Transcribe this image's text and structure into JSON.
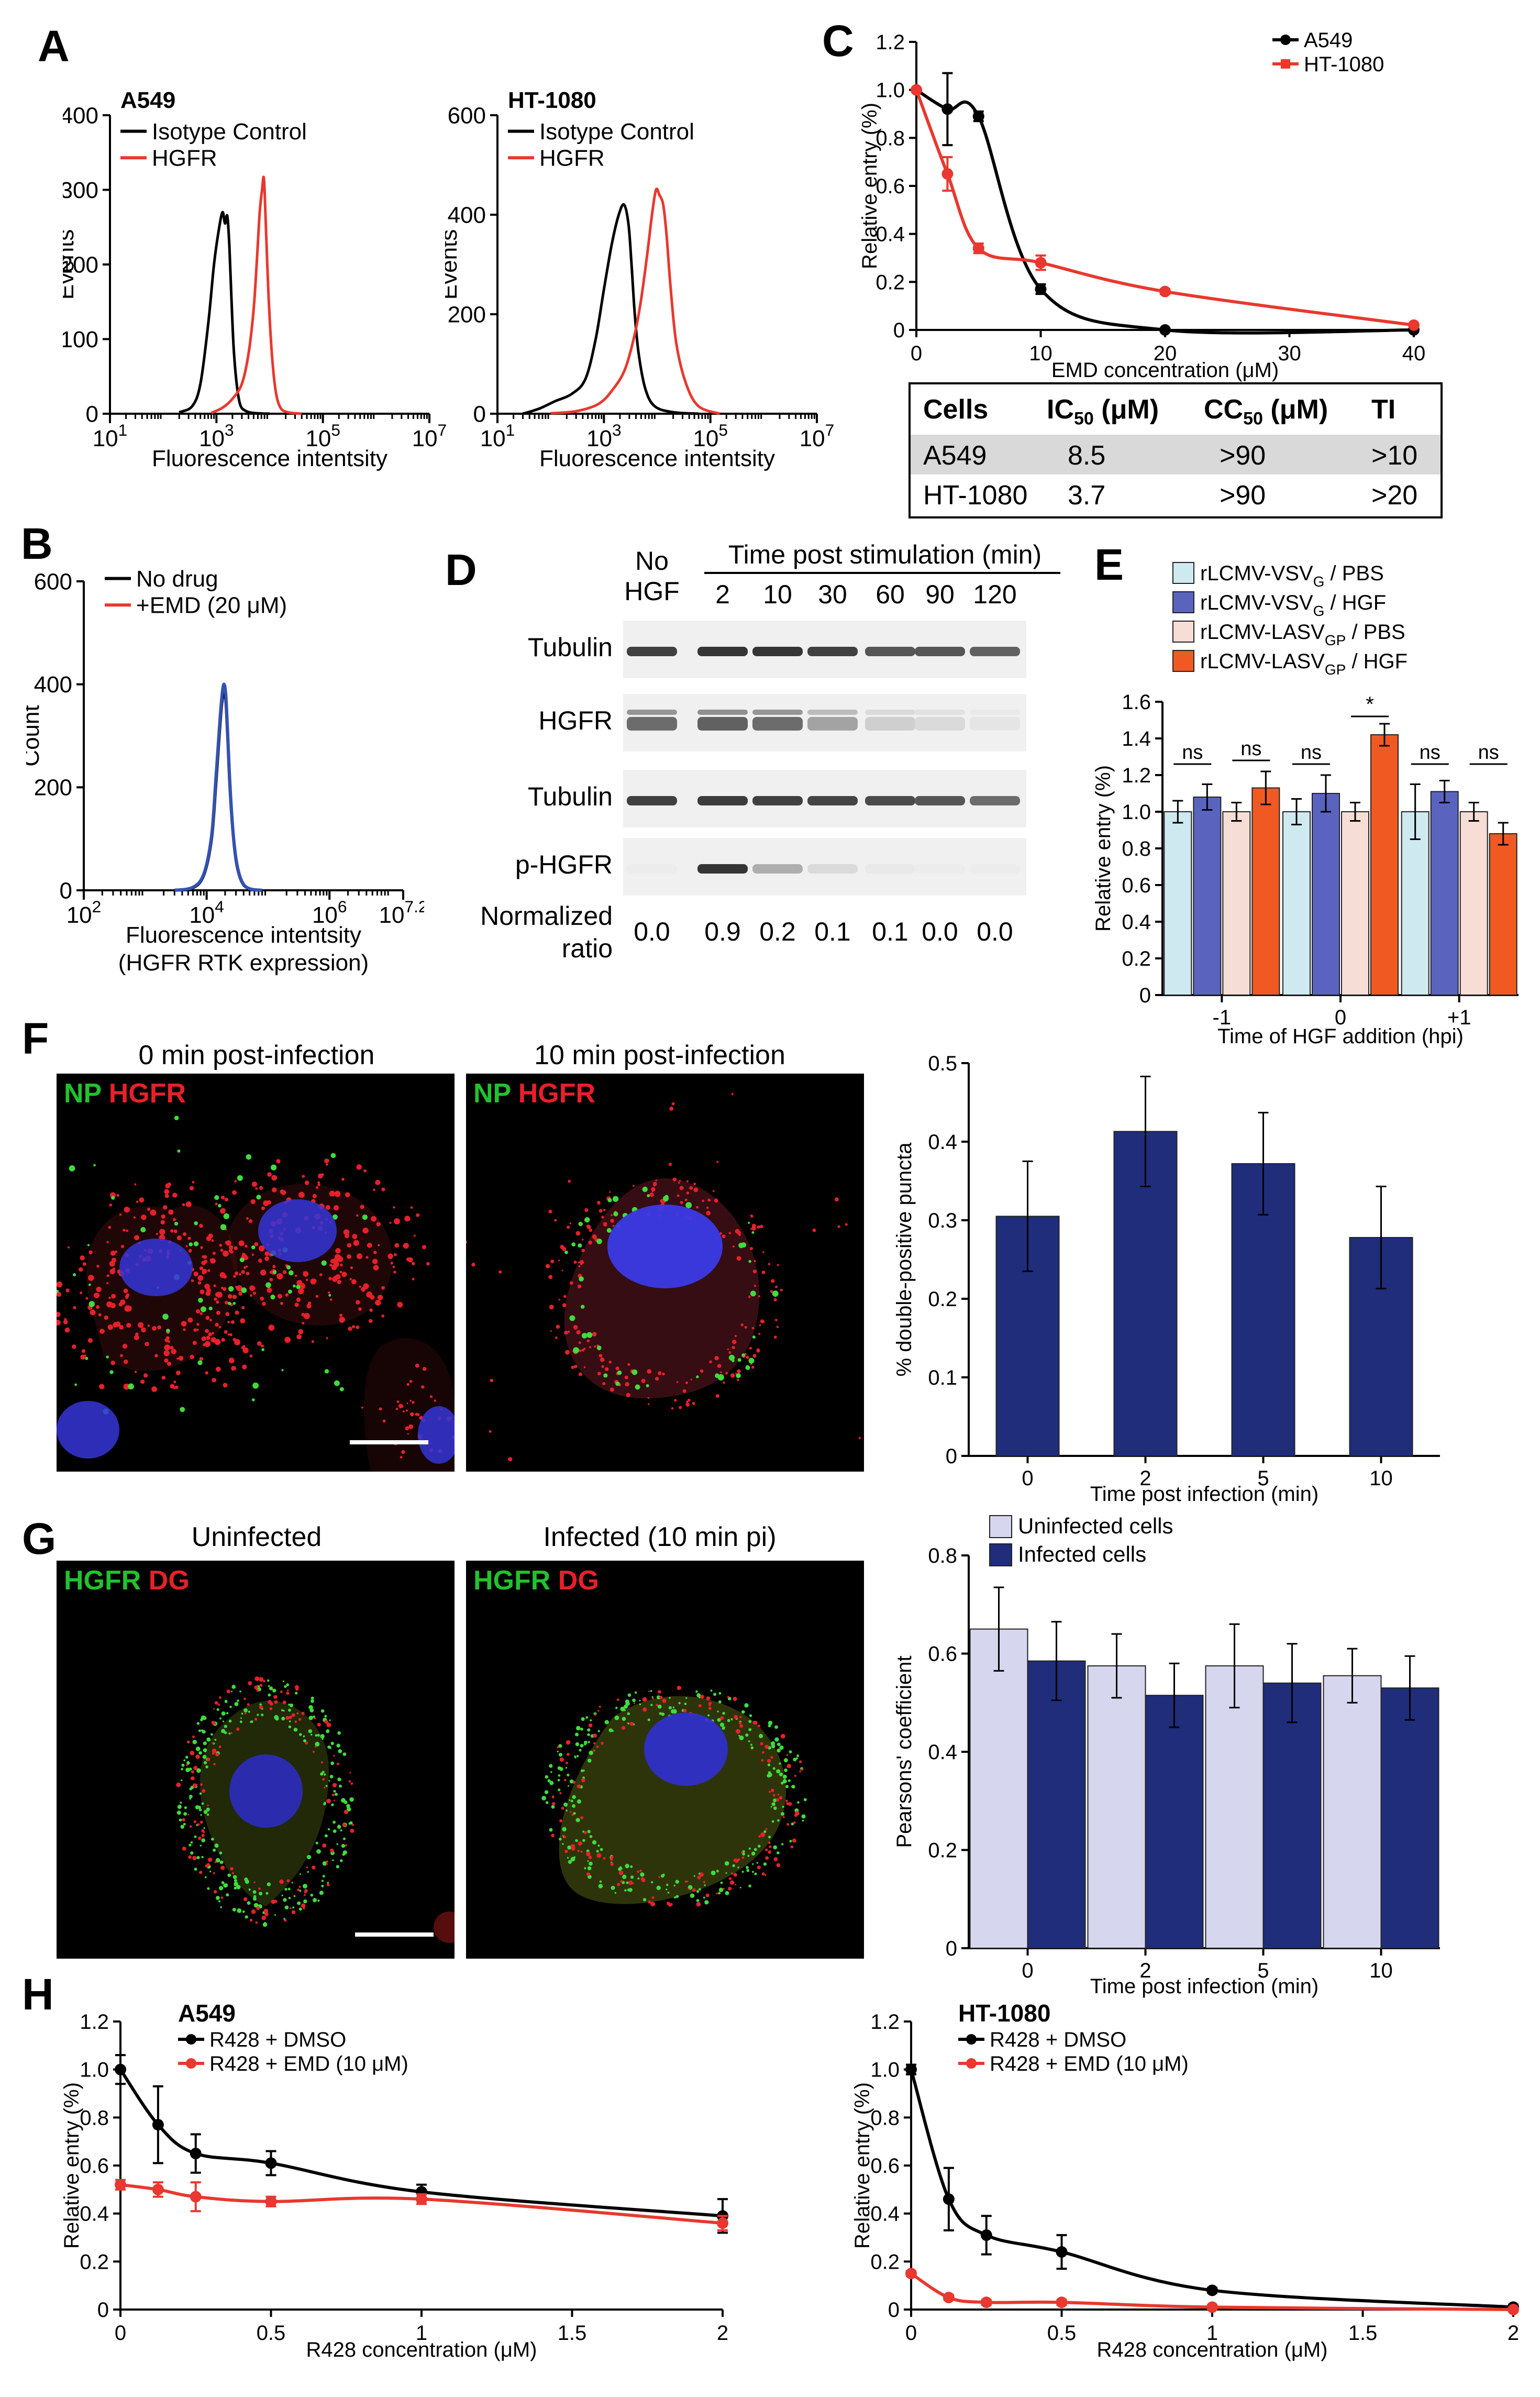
{
  "panel_letters": {
    "A": "A",
    "B": "B",
    "C": "C",
    "D": "D",
    "E": "E",
    "F": "F",
    "G": "G",
    "H": "H"
  },
  "chart_data": [
    {
      "id": "A1",
      "type": "line",
      "title": "A549",
      "xlabel": "Fluorescence intentsity",
      "ylabel": "Events",
      "xscale": "log",
      "xlim": [
        10,
        10000000
      ],
      "ylim": [
        0,
        400
      ],
      "yticks": [
        0,
        100,
        200,
        300,
        400
      ],
      "xticks": [
        {
          "base": "10",
          "exp": "1",
          "v": 10
        },
        {
          "base": "10",
          "exp": "3",
          "v": 1000
        },
        {
          "base": "10",
          "exp": "5",
          "v": 100000
        },
        {
          "base": "10",
          "exp": "7",
          "v": 10000000
        }
      ],
      "legend_position": "top-left",
      "series": [
        {
          "name": "Isotype Control",
          "color": "#000000",
          "x": [
            200,
            350,
            500,
            700,
            900,
            1100,
            1300,
            1450,
            1600,
            1750,
            1900,
            2100,
            2400,
            2800,
            3500,
            5000,
            10000
          ],
          "y": [
            2,
            10,
            40,
            120,
            200,
            245,
            270,
            255,
            265,
            225,
            160,
            90,
            40,
            12,
            4,
            1,
            0
          ]
        },
        {
          "name": "HGFR",
          "color": "#e8382f",
          "x": [
            800,
            1300,
            2000,
            3000,
            4000,
            5000,
            5800,
            6500,
            7200,
            7800,
            8500,
            9500,
            11000,
            13000,
            16000,
            22000,
            40000
          ],
          "y": [
            1,
            8,
            20,
            40,
            80,
            140,
            210,
            270,
            300,
            315,
            250,
            160,
            80,
            30,
            8,
            2,
            0
          ]
        }
      ]
    },
    {
      "id": "A2",
      "type": "line",
      "title": "HT-1080",
      "xlabel": "Fluorescence intentsity",
      "ylabel": "Events",
      "xscale": "log",
      "xlim": [
        10,
        10000000
      ],
      "ylim": [
        0,
        600
      ],
      "yticks": [
        0,
        200,
        400,
        600
      ],
      "xticks": [
        {
          "base": "10",
          "exp": "1",
          "v": 10
        },
        {
          "base": "10",
          "exp": "3",
          "v": 1000
        },
        {
          "base": "10",
          "exp": "5",
          "v": 100000
        },
        {
          "base": "10",
          "exp": "7",
          "v": 10000000
        }
      ],
      "legend_position": "top-left",
      "series": [
        {
          "name": "Isotype Control",
          "color": "#000000",
          "x": [
            30,
            60,
            120,
            250,
            450,
            700,
            1000,
            1400,
            1900,
            2400,
            2900,
            3300,
            3800,
            4500,
            6000,
            9000,
            20000,
            60000
          ],
          "y": [
            0,
            10,
            25,
            40,
            70,
            150,
            250,
            340,
            400,
            420,
            380,
            300,
            200,
            120,
            50,
            15,
            3,
            0
          ]
        },
        {
          "name": "HGFR",
          "color": "#e8382f",
          "x": [
            100,
            300,
            800,
            1500,
            2500,
            3800,
            5000,
            6500,
            8000,
            9500,
            11000,
            13000,
            15000,
            18000,
            23000,
            35000,
            60000,
            150000
          ],
          "y": [
            1,
            5,
            20,
            50,
            90,
            160,
            230,
            320,
            400,
            450,
            440,
            420,
            360,
            250,
            140,
            60,
            15,
            0
          ]
        }
      ]
    },
    {
      "id": "B",
      "type": "line",
      "xlabel": "Fluorescence intentsity",
      "xlabel2": "(HGFR RTK expression)",
      "ylabel": "Count",
      "xscale": "log",
      "xlim": [
        100,
        15848931.9
      ],
      "ylim": [
        0,
        600
      ],
      "yticks": [
        0,
        200,
        400,
        600
      ],
      "xticks": [
        {
          "base": "10",
          "exp": "2",
          "v": 100
        },
        {
          "base": "10",
          "exp": "4",
          "v": 10000
        },
        {
          "base": "10",
          "exp": "6",
          "v": 1000000
        },
        {
          "base": "10",
          "exp": "7.2",
          "v": 15848931.9
        }
      ],
      "legend_position": "top-left",
      "series": [
        {
          "name": "No drug",
          "color": "#000000",
          "x": [
            3000,
            6000,
            9000,
            12000,
            14000,
            16000,
            17500,
            19000,
            20500,
            22000,
            24000,
            27000,
            31000,
            38000,
            50000,
            80000
          ],
          "y": [
            0,
            5,
            30,
            100,
            200,
            300,
            360,
            385,
            370,
            300,
            200,
            110,
            50,
            15,
            3,
            0
          ]
        },
        {
          "name": "+EMD (20 μM)",
          "color": "#e8382f",
          "legend_only": true,
          "x": [],
          "y": []
        },
        {
          "name": "",
          "color": "#3352b4",
          "x": [
            3000,
            6000,
            9000,
            12000,
            14000,
            16000,
            17500,
            19000,
            20500,
            22000,
            24000,
            27000,
            31000,
            38000,
            50000,
            80000
          ],
          "y": [
            0,
            6,
            32,
            105,
            210,
            310,
            370,
            400,
            380,
            305,
            205,
            112,
            52,
            16,
            3,
            0
          ]
        }
      ]
    },
    {
      "id": "C",
      "type": "line",
      "xlabel": "EMD concentration (μM)",
      "ylabel": "Relative entry (%)",
      "xlim": [
        0,
        40
      ],
      "ylim": [
        0,
        1.2
      ],
      "xticks": [
        0,
        10,
        20,
        30,
        40
      ],
      "yticks": [
        0,
        0.2,
        0.4,
        0.6,
        0.8,
        1.0,
        1.2
      ],
      "legend_position": "top-right",
      "series": [
        {
          "name": "A549",
          "color": "#000000",
          "x": [
            0,
            2.5,
            5,
            10,
            20,
            40
          ],
          "y": [
            1.0,
            0.92,
            0.89,
            0.17,
            0.0,
            0.0
          ],
          "err": [
            0,
            0.15,
            0.02,
            0.02,
            0,
            0
          ]
        },
        {
          "name": "HT-1080",
          "color": "#e8382f",
          "x": [
            0,
            2.5,
            5,
            10,
            20,
            40
          ],
          "y": [
            1.0,
            0.65,
            0.34,
            0.28,
            0.16,
            0.02
          ],
          "err": [
            0,
            0.07,
            0.02,
            0.03,
            0.01,
            0
          ]
        }
      ]
    },
    {
      "id": "E",
      "type": "bar",
      "xlabel": "Time of HGF addition (hpi)",
      "ylabel": "Relative entry (%)",
      "ylim": [
        0,
        1.6
      ],
      "yticks": [
        0,
        0.2,
        0.4,
        0.6,
        0.8,
        1.0,
        1.2,
        1.4,
        1.6
      ],
      "categories": [
        "-1",
        "0",
        "+1"
      ],
      "legend_position": "top",
      "series": [
        {
          "name": "rLCMV-VSV",
          "sub": "G",
          "suffix": " / PBS",
          "color": "#cfe9f1",
          "values": [
            1.0,
            1.0,
            1.0
          ],
          "err": [
            0.06,
            0.07,
            0.15
          ]
        },
        {
          "name": "rLCMV-VSV",
          "sub": "G",
          "suffix": " / HGF",
          "color": "#5a64bf",
          "values": [
            1.08,
            1.1,
            1.11
          ],
          "err": [
            0.07,
            0.1,
            0.06
          ]
        },
        {
          "name": "rLCMV-LASV",
          "sub": "GP",
          "suffix": " / PBS",
          "color": "#f6ddd6",
          "values": [
            1.0,
            1.0,
            1.0
          ],
          "err": [
            0.05,
            0.05,
            0.05
          ]
        },
        {
          "name": "rLCMV-LASV",
          "sub": "GP",
          "suffix": " / HGF",
          "color": "#f05a22",
          "values": [
            1.13,
            1.42,
            0.88
          ],
          "err": [
            0.09,
            0.06,
            0.06
          ]
        }
      ],
      "annotations": {
        "ns": "ns",
        "star": "*"
      }
    },
    {
      "id": "F",
      "type": "bar",
      "xlabel": "Time post infection (min)",
      "ylabel": "% double-positive puncta",
      "ylim": [
        0,
        0.5
      ],
      "yticks": [
        0,
        0.1,
        0.2,
        0.3,
        0.4,
        0.5
      ],
      "categories": [
        "0",
        "2",
        "5",
        "10"
      ],
      "series": [
        {
          "name": "",
          "color": "#1f2d7a",
          "values": [
            0.305,
            0.413,
            0.372,
            0.278
          ],
          "err": [
            0.07,
            0.07,
            0.065,
            0.065
          ]
        }
      ]
    },
    {
      "id": "G",
      "type": "bar",
      "xlabel": "Time post infection (min)",
      "ylabel": "Pearsons' coefficient",
      "ylim": [
        0,
        0.8
      ],
      "yticks": [
        0,
        0.2,
        0.4,
        0.6,
        0.8
      ],
      "categories": [
        "0",
        "2",
        "5",
        "10"
      ],
      "legend_position": "top-left",
      "series": [
        {
          "name": "Uninfected cells",
          "color": "#d6d6ee",
          "values": [
            0.65,
            0.575,
            0.575,
            0.555
          ],
          "err": [
            0.085,
            0.065,
            0.085,
            0.055
          ]
        },
        {
          "name": "Infected cells",
          "color": "#1f2d7a",
          "values": [
            0.585,
            0.515,
            0.54,
            0.53
          ],
          "err": [
            0.08,
            0.065,
            0.08,
            0.065
          ]
        }
      ]
    },
    {
      "id": "H1",
      "type": "line",
      "title": "A549",
      "xlabel": "R428 concentration (μM)",
      "ylabel": "Relative entry (%)",
      "xlim": [
        0,
        2
      ],
      "ylim": [
        0,
        1.2
      ],
      "xticks": [
        0,
        0.5,
        1,
        1.5,
        2
      ],
      "yticks": [
        0,
        0.2,
        0.4,
        0.6,
        0.8,
        1.0,
        1.2
      ],
      "legend_position": "top-left",
      "series": [
        {
          "name": "R428 + DMSO",
          "color": "#000000",
          "x": [
            0,
            0.125,
            0.25,
            0.5,
            1,
            2
          ],
          "y": [
            1.0,
            0.77,
            0.65,
            0.61,
            0.49,
            0.39
          ],
          "err": [
            0.06,
            0.16,
            0.08,
            0.05,
            0.03,
            0.07
          ]
        },
        {
          "name": "R428 + EMD (10 μM)",
          "color": "#e8382f",
          "x": [
            0,
            0.125,
            0.25,
            0.5,
            1,
            2
          ],
          "y": [
            0.52,
            0.5,
            0.47,
            0.45,
            0.46,
            0.36
          ],
          "err": [
            0.02,
            0.03,
            0.06,
            0.02,
            0.02,
            0.03
          ]
        }
      ]
    },
    {
      "id": "H2",
      "type": "line",
      "title": "HT-1080",
      "xlabel": "R428 concentration (μM)",
      "ylabel": "Relative entry (%)",
      "xlim": [
        0,
        2
      ],
      "ylim": [
        0,
        1.2
      ],
      "xticks": [
        0,
        0.5,
        1,
        1.5,
        2
      ],
      "yticks": [
        0,
        0.2,
        0.4,
        0.6,
        0.8,
        1.0,
        1.2
      ],
      "legend_position": "top-left",
      "series": [
        {
          "name": "R428 + DMSO",
          "color": "#000000",
          "x": [
            0,
            0.125,
            0.25,
            0.5,
            1,
            2
          ],
          "y": [
            1.0,
            0.46,
            0.31,
            0.24,
            0.08,
            0.01
          ],
          "err": [
            0.02,
            0.13,
            0.08,
            0.07,
            0.01,
            0.01
          ]
        },
        {
          "name": "R428 + EMD (10 μM)",
          "color": "#e8382f",
          "x": [
            0,
            0.125,
            0.25,
            0.5,
            1,
            2
          ],
          "y": [
            0.15,
            0.05,
            0.03,
            0.03,
            0.01,
            0.0
          ],
          "err": [
            0.01,
            0.01,
            0.01,
            0.01,
            0,
            0
          ]
        }
      ]
    }
  ],
  "table_c": {
    "headers": [
      {
        "t": "Cells"
      },
      {
        "t": "IC",
        "sub": "50",
        "tail": " (μM)"
      },
      {
        "t": "CC",
        "sub": "50",
        "tail": " (μM)"
      },
      {
        "t": "TI"
      }
    ],
    "rows": [
      [
        "A549",
        "8.5",
        ">90",
        ">10"
      ],
      [
        "HT-1080",
        "3.7",
        ">90",
        ">20"
      ]
    ]
  },
  "blot_d": {
    "no_hgf": "No",
    "no_hgf2": "HGF",
    "time_header": "Time post stimulation (min)",
    "times": [
      "2",
      "10",
      "30",
      "60",
      "90",
      "120"
    ],
    "rows": [
      "Tubulin",
      "HGFR",
      "Tubulin",
      "p-HGFR"
    ],
    "ratio_label": "Normalized",
    "ratio_label2": "ratio",
    "ratios": [
      "0.0",
      "0.9",
      "0.2",
      "0.1",
      "0.1",
      "0.0",
      "0.0"
    ],
    "band_intensity": {
      "tubulin1": [
        0.8,
        0.85,
        0.85,
        0.8,
        0.7,
        0.7,
        0.65
      ],
      "hgfr": [
        0.6,
        0.65,
        0.6,
        0.35,
        0.15,
        0.1,
        0.05
      ],
      "tubulin2": [
        0.8,
        0.82,
        0.8,
        0.78,
        0.75,
        0.7,
        0.6
      ],
      "phgfr": [
        0.02,
        0.85,
        0.3,
        0.1,
        0.03,
        0.02,
        0.02
      ]
    }
  },
  "micro_f": {
    "left_title": "0 min post-infection",
    "right_title": "10 min post-infection",
    "label_a": "NP",
    "label_b": "HGFR",
    "color_a": "#22c22e",
    "color_b": "#e8202a"
  },
  "micro_g": {
    "left_title": "Uninfected",
    "right_title": "Infected (10 min pi)",
    "label_a": "HGFR",
    "label_b": "DG",
    "color_a": "#22c22e",
    "color_b": "#e8202a"
  }
}
